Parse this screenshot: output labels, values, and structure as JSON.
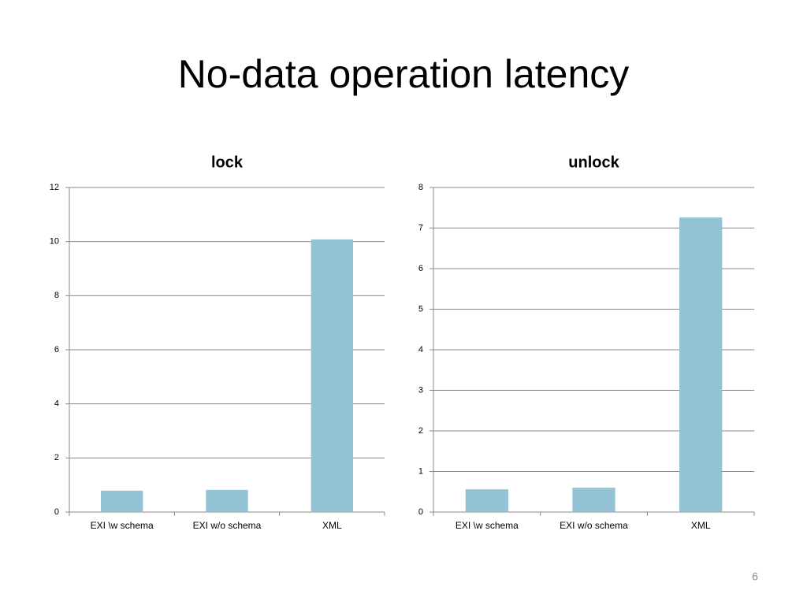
{
  "title": "No-data operation latency",
  "page_number": "6",
  "chart_data": [
    {
      "type": "bar",
      "title": "lock",
      "categories": [
        "EXI \\w schema",
        "EXI w/o schema",
        "XML"
      ],
      "values": [
        0.79,
        0.82,
        10.08
      ],
      "color": "#93c3d5",
      "ylim": [
        0,
        12
      ],
      "yticks": [
        0,
        2,
        4,
        6,
        8,
        10,
        12
      ],
      "grid": true
    },
    {
      "type": "bar",
      "title": "unlock",
      "categories": [
        "EXI \\w schema",
        "EXI w/o schema",
        "XML"
      ],
      "values": [
        0.56,
        0.6,
        7.26
      ],
      "color": "#93c3d5",
      "ylim": [
        0,
        8
      ],
      "yticks": [
        0,
        1,
        2,
        3,
        4,
        5,
        6,
        7,
        8
      ],
      "grid": true
    }
  ]
}
